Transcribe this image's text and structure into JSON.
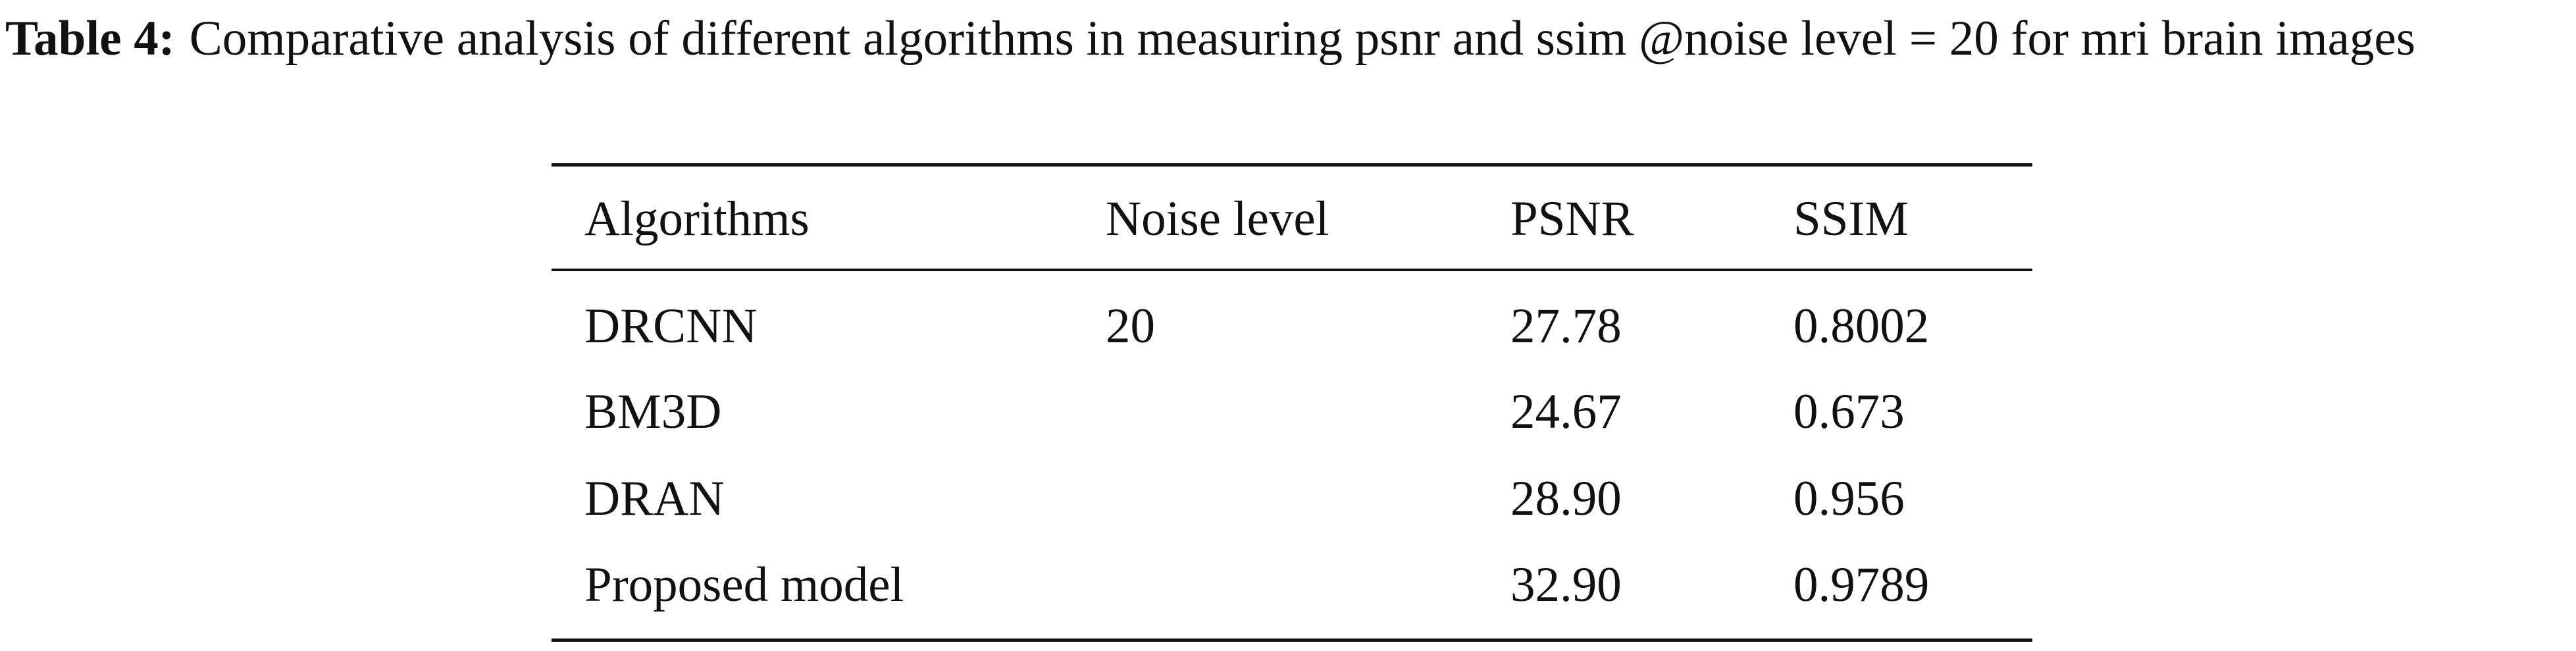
{
  "caption": {
    "label": "Table 4:",
    "text": "Comparative analysis of different algorithms in measuring psnr and ssim @noise level = 20 for mri brain images"
  },
  "table": {
    "headers": [
      "Algorithms",
      "Noise level",
      "PSNR",
      "SSIM"
    ],
    "rows": [
      {
        "algorithm": "DRCNN",
        "noise_level": "20",
        "psnr": "27.78",
        "ssim": "0.8002"
      },
      {
        "algorithm": "BM3D",
        "psnr": "24.67",
        "ssim": "0.673"
      },
      {
        "algorithm": "DRAN",
        "psnr": "28.90",
        "ssim": "0.956"
      },
      {
        "algorithm": "Proposed model",
        "psnr": "32.90",
        "ssim": "0.9789"
      }
    ]
  }
}
